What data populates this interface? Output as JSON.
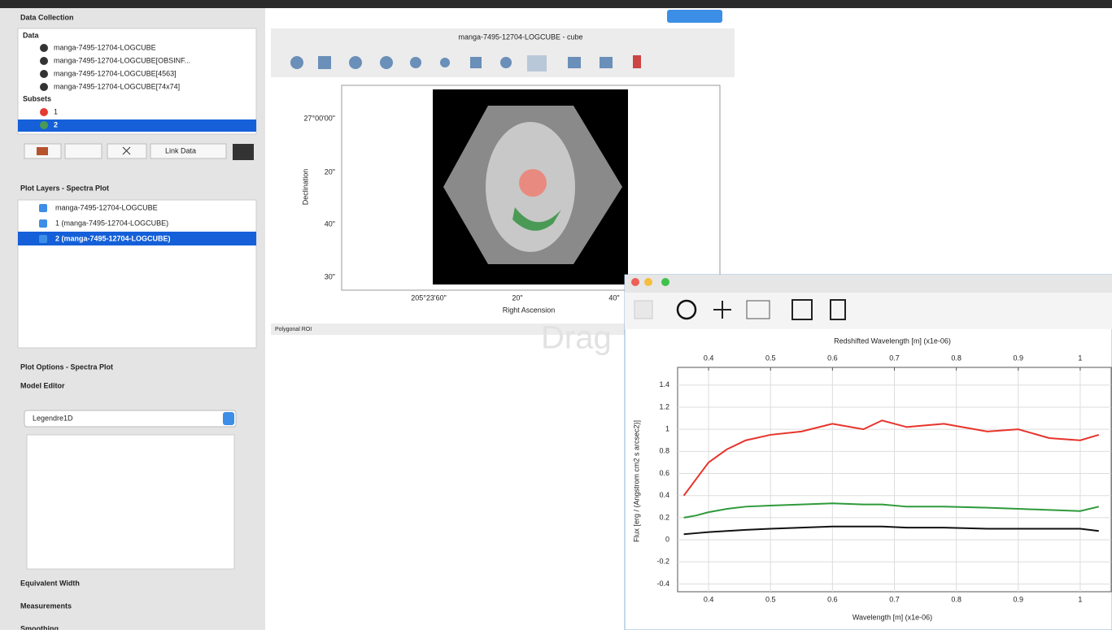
{
  "data_collection": {
    "title": "Data Collection",
    "data_label": "Data",
    "data_items": [
      "manga-7495-12704-LOGCUBE",
      "manga-7495-12704-LOGCUBE[OBSINF...",
      "manga-7495-12704-LOGCUBE[4563]",
      "manga-7495-12704-LOGCUBE[74x74]"
    ],
    "subsets_label": "Subsets",
    "subsets": [
      "1",
      "2"
    ],
    "link_button": "Link Data"
  },
  "plot_layers": {
    "title": "Plot Layers - Spectra Plot",
    "items": [
      "manga-7495-12704-LOGCUBE",
      "1 (manga-7495-12704-LOGCUBE)",
      "2 (manga-7495-12704-LOGCUBE)"
    ]
  },
  "plot_options": {
    "title": "Plot Options - Spectra Plot",
    "model_editor": "Model Editor",
    "model": "Legendre1D",
    "sections": [
      "Equivalent Width",
      "Measurements",
      "Smoothing"
    ]
  },
  "cube_window": {
    "title": "manga-7495-12704-LOGCUBE - cube",
    "y_label": "Declination",
    "x_label": "Right Ascension",
    "y_ticks": [
      "27°00'00\"",
      "20\"",
      "40\"",
      "30\""
    ],
    "x_ticks": [
      "205°23'60\"",
      "20\"",
      "40\""
    ],
    "roi_label": "Polygonal ROI",
    "background_hint": "Drag"
  },
  "spectrum": {
    "type": "line",
    "top_label": "Redshifted Wavelength [m] (x1e-06)",
    "x_label": "Wavelength [m] (x1e-06)",
    "y_label": "Flux [erg / (Angstrom cm2 s arcsec2)]",
    "xlim": [
      0.35,
      1.05
    ],
    "ylim": [
      -0.47,
      1.56
    ],
    "xticks": [
      0.4,
      0.5,
      0.6,
      0.7,
      0.8,
      0.9,
      1.0
    ],
    "top_xticks": [
      0.4,
      0.5,
      0.6,
      0.7,
      0.8,
      0.9,
      1.0
    ],
    "yticks": [
      -0.4,
      -0.2,
      0,
      0.2,
      0.4,
      0.6,
      0.8,
      1,
      1.2,
      1.4
    ],
    "grid": true,
    "x": [
      0.36,
      0.38,
      0.4,
      0.43,
      0.46,
      0.5,
      0.55,
      0.6,
      0.65,
      0.68,
      0.72,
      0.78,
      0.85,
      0.9,
      0.95,
      1.0,
      1.03
    ],
    "series": [
      {
        "color": "#e8332a",
        "values": [
          0.4,
          0.55,
          0.7,
          0.82,
          0.9,
          0.95,
          0.98,
          1.05,
          1.0,
          1.08,
          1.02,
          1.05,
          0.98,
          1.0,
          0.92,
          0.9,
          0.95
        ]
      },
      {
        "color": "#2e9a3a",
        "values": [
          0.2,
          0.22,
          0.25,
          0.28,
          0.3,
          0.31,
          0.32,
          0.33,
          0.32,
          0.32,
          0.3,
          0.3,
          0.29,
          0.28,
          0.27,
          0.26,
          0.3
        ]
      },
      {
        "color": "#111111",
        "values": [
          0.05,
          0.06,
          0.07,
          0.08,
          0.09,
          0.1,
          0.11,
          0.12,
          0.12,
          0.12,
          0.11,
          0.11,
          0.1,
          0.1,
          0.1,
          0.1,
          0.08
        ]
      }
    ]
  }
}
